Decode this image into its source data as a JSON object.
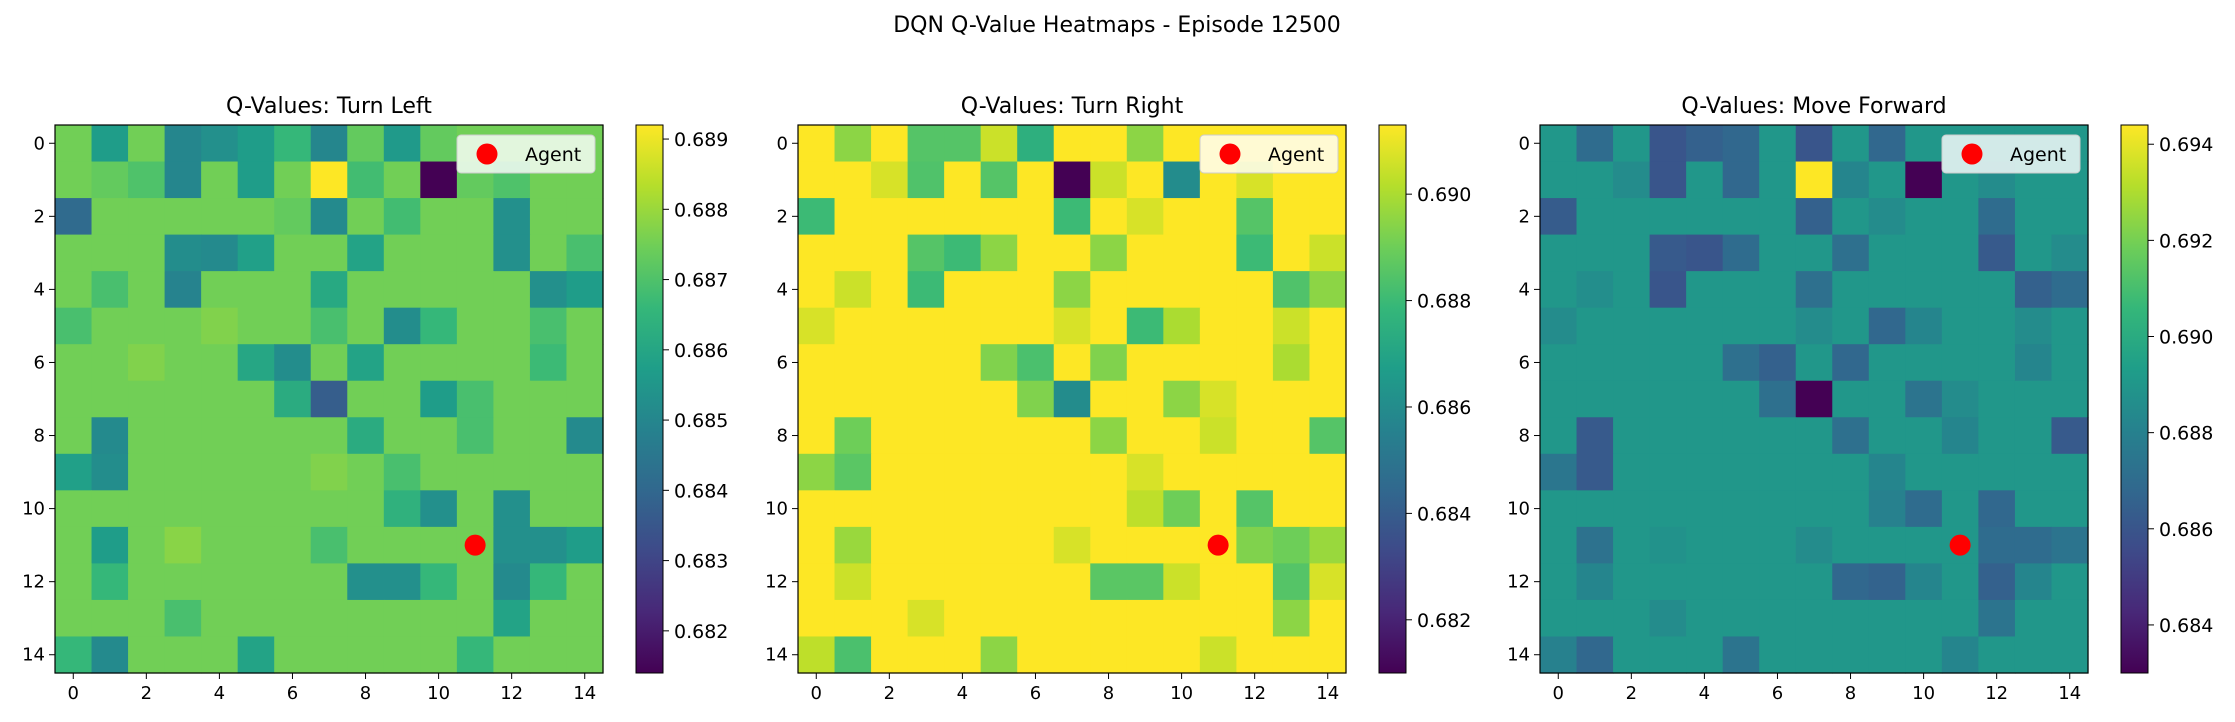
{
  "figure": {
    "suptitle": "DQN Q-Value Heatmaps - Episode 12500"
  },
  "colormap": [
    "#440154",
    "#482878",
    "#3e4a89",
    "#31688e",
    "#26828e",
    "#1f9e89",
    "#35b779",
    "#6ece58",
    "#b5de2b",
    "#fde725"
  ],
  "marker": {
    "color": "#ff0000",
    "x": 11,
    "y": 11,
    "label": "Agent"
  },
  "chart_data": [
    {
      "type": "heatmap",
      "title": "Q-Values: Turn Left",
      "x_ticks": [
        0,
        2,
        4,
        6,
        8,
        10,
        12,
        14
      ],
      "y_ticks": [
        0,
        2,
        4,
        6,
        8,
        10,
        12,
        14
      ],
      "vmin": 0.6814,
      "vmax": 0.6892,
      "colorbar_ticks": [
        0.682,
        0.683,
        0.684,
        0.685,
        0.686,
        0.687,
        0.688,
        0.689
      ],
      "colorbar_labels": [
        "0.682",
        "0.683",
        "0.684",
        "0.685",
        "0.686",
        "0.687",
        "0.688",
        "0.689"
      ],
      "legend": "Agent",
      "values": [
        [
          0.6875,
          0.6857,
          0.6875,
          0.685,
          0.6853,
          0.6857,
          0.6866,
          0.685,
          0.6873,
          0.6856,
          0.6873,
          0.6875,
          0.6875,
          0.6875,
          0.6875
        ],
        [
          0.6875,
          0.6873,
          0.687,
          0.685,
          0.6875,
          0.6857,
          0.6875,
          0.6892,
          0.6868,
          0.6875,
          0.6814,
          0.6873,
          0.687,
          0.6875,
          0.6875
        ],
        [
          0.6841,
          0.6875,
          0.6875,
          0.6875,
          0.6875,
          0.6875,
          0.6873,
          0.6851,
          0.6875,
          0.6868,
          0.6875,
          0.6875,
          0.6853,
          0.6875,
          0.6875
        ],
        [
          0.6875,
          0.6875,
          0.6875,
          0.6852,
          0.6851,
          0.6858,
          0.6875,
          0.6875,
          0.6859,
          0.6875,
          0.6875,
          0.6875,
          0.6853,
          0.6875,
          0.6869
        ],
        [
          0.6875,
          0.6869,
          0.6875,
          0.6849,
          0.6875,
          0.6875,
          0.6875,
          0.6861,
          0.6875,
          0.6875,
          0.6875,
          0.6875,
          0.6875,
          0.6853,
          0.6857
        ],
        [
          0.6869,
          0.6875,
          0.6875,
          0.6875,
          0.6877,
          0.6875,
          0.6875,
          0.6869,
          0.6875,
          0.6852,
          0.6866,
          0.6875,
          0.6875,
          0.6869,
          0.6875
        ],
        [
          0.6875,
          0.6875,
          0.6877,
          0.6875,
          0.6875,
          0.686,
          0.6852,
          0.6875,
          0.6859,
          0.6875,
          0.6875,
          0.6875,
          0.6875,
          0.6867,
          0.6875
        ],
        [
          0.6875,
          0.6875,
          0.6875,
          0.6875,
          0.6875,
          0.6875,
          0.6862,
          0.6837,
          0.6875,
          0.6875,
          0.6857,
          0.6869,
          0.6875,
          0.6875,
          0.6875
        ],
        [
          0.6875,
          0.6851,
          0.6875,
          0.6875,
          0.6875,
          0.6875,
          0.6875,
          0.6875,
          0.6862,
          0.6875,
          0.6875,
          0.6869,
          0.6875,
          0.6875,
          0.6851
        ],
        [
          0.6858,
          0.6852,
          0.6875,
          0.6875,
          0.6875,
          0.6875,
          0.6875,
          0.6877,
          0.6875,
          0.6869,
          0.6875,
          0.6875,
          0.6875,
          0.6875,
          0.6875
        ],
        [
          0.6875,
          0.6875,
          0.6875,
          0.6875,
          0.6875,
          0.6875,
          0.6875,
          0.6875,
          0.6875,
          0.6864,
          0.6853,
          0.6875,
          0.6853,
          0.6875,
          0.6875
        ],
        [
          0.6875,
          0.6857,
          0.6875,
          0.6878,
          0.6875,
          0.6875,
          0.6875,
          0.6869,
          0.6875,
          0.6875,
          0.6875,
          0.6875,
          0.6853,
          0.6853,
          0.6857
        ],
        [
          0.6875,
          0.6866,
          0.6875,
          0.6875,
          0.6875,
          0.6875,
          0.6875,
          0.6875,
          0.6853,
          0.6853,
          0.6866,
          0.6875,
          0.6851,
          0.6866,
          0.6875
        ],
        [
          0.6875,
          0.6875,
          0.6875,
          0.6869,
          0.6875,
          0.6875,
          0.6875,
          0.6875,
          0.6875,
          0.6875,
          0.6875,
          0.6875,
          0.6859,
          0.6875,
          0.6875
        ],
        [
          0.6866,
          0.6851,
          0.6875,
          0.6875,
          0.6875,
          0.6859,
          0.6875,
          0.6875,
          0.6875,
          0.6875,
          0.6875,
          0.6866,
          0.6875,
          0.6875,
          0.6875
        ]
      ]
    },
    {
      "type": "heatmap",
      "title": "Q-Values: Turn Right",
      "x_ticks": [
        0,
        2,
        4,
        6,
        8,
        10,
        12,
        14
      ],
      "y_ticks": [
        0,
        2,
        4,
        6,
        8,
        10,
        12,
        14
      ],
      "vmin": 0.681,
      "vmax": 0.6913,
      "colorbar_ticks": [
        0.682,
        0.684,
        0.686,
        0.688,
        0.69
      ],
      "colorbar_labels": [
        "0.682",
        "0.684",
        "0.686",
        "0.688",
        "0.690"
      ],
      "legend": "Agent",
      "values": [
        [
          0.6913,
          0.6895,
          0.6913,
          0.6885,
          0.6885,
          0.6905,
          0.6875,
          0.6913,
          0.6913,
          0.6895,
          0.6913,
          0.6913,
          0.6913,
          0.6913,
          0.6913
        ],
        [
          0.6913,
          0.6913,
          0.6907,
          0.6884,
          0.6913,
          0.6885,
          0.6913,
          0.681,
          0.6905,
          0.6913,
          0.686,
          0.6913,
          0.6907,
          0.6913,
          0.6913
        ],
        [
          0.688,
          0.6913,
          0.6913,
          0.6913,
          0.6913,
          0.6913,
          0.6913,
          0.688,
          0.6913,
          0.6907,
          0.6913,
          0.6913,
          0.6885,
          0.6913,
          0.6913
        ],
        [
          0.6913,
          0.6913,
          0.6913,
          0.6885,
          0.688,
          0.6895,
          0.6913,
          0.6913,
          0.6895,
          0.6913,
          0.6913,
          0.6913,
          0.688,
          0.6913,
          0.6905
        ],
        [
          0.6913,
          0.6905,
          0.6913,
          0.688,
          0.6913,
          0.6913,
          0.6913,
          0.6895,
          0.6913,
          0.6913,
          0.6913,
          0.6913,
          0.6913,
          0.6884,
          0.6895
        ],
        [
          0.6907,
          0.6913,
          0.6913,
          0.6913,
          0.6915,
          0.6913,
          0.6913,
          0.6907,
          0.6913,
          0.688,
          0.69,
          0.6913,
          0.6913,
          0.6905,
          0.6913
        ],
        [
          0.6913,
          0.6913,
          0.6915,
          0.6913,
          0.6913,
          0.6893,
          0.6883,
          0.6913,
          0.6893,
          0.6913,
          0.6913,
          0.6913,
          0.6913,
          0.69,
          0.6913
        ],
        [
          0.6913,
          0.6913,
          0.6913,
          0.6913,
          0.6913,
          0.6913,
          0.6893,
          0.686,
          0.6913,
          0.6913,
          0.6895,
          0.6907,
          0.6913,
          0.6913,
          0.6913
        ],
        [
          0.6913,
          0.689,
          0.6913,
          0.6913,
          0.6913,
          0.6913,
          0.6913,
          0.6913,
          0.6895,
          0.6913,
          0.6913,
          0.6905,
          0.6913,
          0.6913,
          0.6885
        ],
        [
          0.6895,
          0.6886,
          0.6913,
          0.6913,
          0.6913,
          0.6913,
          0.6913,
          0.6915,
          0.6913,
          0.6907,
          0.6913,
          0.6913,
          0.6913,
          0.6913,
          0.6913
        ],
        [
          0.6913,
          0.6913,
          0.6913,
          0.6913,
          0.6913,
          0.6913,
          0.6913,
          0.6913,
          0.6913,
          0.6903,
          0.689,
          0.6913,
          0.6885,
          0.6913,
          0.6913
        ],
        [
          0.6913,
          0.6897,
          0.6913,
          0.6915,
          0.6913,
          0.6913,
          0.6913,
          0.6907,
          0.6913,
          0.6913,
          0.6913,
          0.6913,
          0.6893,
          0.689,
          0.6897
        ],
        [
          0.6913,
          0.6905,
          0.6913,
          0.6913,
          0.6913,
          0.6913,
          0.6913,
          0.6913,
          0.6886,
          0.6886,
          0.6905,
          0.6913,
          0.6913,
          0.6885,
          0.6907
        ],
        [
          0.6913,
          0.6913,
          0.6913,
          0.6907,
          0.6913,
          0.6913,
          0.6913,
          0.6913,
          0.6913,
          0.6913,
          0.6913,
          0.6913,
          0.6913,
          0.6895,
          0.6913
        ],
        [
          0.6903,
          0.6883,
          0.6913,
          0.6913,
          0.6913,
          0.6895,
          0.6913,
          0.6913,
          0.6913,
          0.6913,
          0.6913,
          0.6905,
          0.6913,
          0.6913,
          0.6913
        ]
      ]
    },
    {
      "type": "heatmap",
      "title": "Q-Values: Move Forward",
      "x_ticks": [
        0,
        2,
        4,
        6,
        8,
        10,
        12,
        14
      ],
      "y_ticks": [
        0,
        2,
        4,
        6,
        8,
        10,
        12,
        14
      ],
      "vmin": 0.683,
      "vmax": 0.6944,
      "colorbar_ticks": [
        0.684,
        0.686,
        0.688,
        0.69,
        0.692,
        0.694
      ],
      "colorbar_labels": [
        "0.684",
        "0.686",
        "0.688",
        "0.690",
        "0.692",
        "0.694"
      ],
      "legend": "Agent",
      "values": [
        [
          0.689,
          0.687,
          0.689,
          0.686,
          0.6865,
          0.6868,
          0.689,
          0.686,
          0.689,
          0.6868,
          0.689,
          0.689,
          0.689,
          0.689,
          0.689
        ],
        [
          0.689,
          0.689,
          0.6885,
          0.686,
          0.689,
          0.6868,
          0.689,
          0.6944,
          0.6882,
          0.689,
          0.683,
          0.689,
          0.6885,
          0.689,
          0.689
        ],
        [
          0.6863,
          0.689,
          0.689,
          0.689,
          0.689,
          0.689,
          0.689,
          0.6865,
          0.689,
          0.6885,
          0.689,
          0.689,
          0.687,
          0.689,
          0.689
        ],
        [
          0.689,
          0.689,
          0.689,
          0.6862,
          0.686,
          0.687,
          0.689,
          0.689,
          0.6872,
          0.689,
          0.689,
          0.689,
          0.6862,
          0.689,
          0.6885
        ],
        [
          0.689,
          0.6886,
          0.689,
          0.686,
          0.689,
          0.689,
          0.689,
          0.6872,
          0.689,
          0.689,
          0.689,
          0.689,
          0.689,
          0.6865,
          0.687
        ],
        [
          0.6885,
          0.689,
          0.689,
          0.689,
          0.689,
          0.689,
          0.689,
          0.6885,
          0.689,
          0.6868,
          0.6882,
          0.689,
          0.689,
          0.6885,
          0.689
        ],
        [
          0.689,
          0.689,
          0.689,
          0.689,
          0.689,
          0.6872,
          0.6865,
          0.689,
          0.6868,
          0.689,
          0.689,
          0.689,
          0.689,
          0.6882,
          0.689
        ],
        [
          0.689,
          0.689,
          0.689,
          0.689,
          0.689,
          0.689,
          0.6872,
          0.683,
          0.689,
          0.689,
          0.6874,
          0.6885,
          0.689,
          0.689,
          0.689
        ],
        [
          0.689,
          0.6862,
          0.689,
          0.689,
          0.689,
          0.689,
          0.689,
          0.689,
          0.6872,
          0.689,
          0.689,
          0.6882,
          0.689,
          0.689,
          0.6862
        ],
        [
          0.6875,
          0.6862,
          0.689,
          0.689,
          0.689,
          0.689,
          0.689,
          0.689,
          0.689,
          0.6882,
          0.689,
          0.689,
          0.689,
          0.689,
          0.689
        ],
        [
          0.689,
          0.689,
          0.689,
          0.689,
          0.689,
          0.689,
          0.689,
          0.689,
          0.689,
          0.688,
          0.687,
          0.689,
          0.6868,
          0.689,
          0.689
        ],
        [
          0.689,
          0.6873,
          0.689,
          0.6888,
          0.689,
          0.689,
          0.689,
          0.6885,
          0.689,
          0.689,
          0.689,
          0.689,
          0.687,
          0.687,
          0.6874
        ],
        [
          0.689,
          0.6882,
          0.689,
          0.689,
          0.689,
          0.689,
          0.689,
          0.689,
          0.6868,
          0.6866,
          0.6882,
          0.689,
          0.6865,
          0.6882,
          0.689
        ],
        [
          0.689,
          0.689,
          0.689,
          0.6885,
          0.689,
          0.689,
          0.689,
          0.689,
          0.689,
          0.689,
          0.689,
          0.689,
          0.6874,
          0.689,
          0.689
        ],
        [
          0.688,
          0.6868,
          0.689,
          0.689,
          0.689,
          0.6874,
          0.689,
          0.689,
          0.689,
          0.689,
          0.689,
          0.6882,
          0.689,
          0.689,
          0.689
        ]
      ]
    }
  ]
}
